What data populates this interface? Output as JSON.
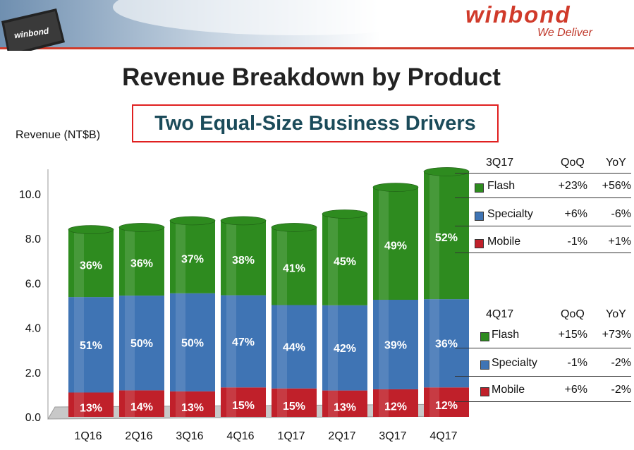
{
  "header": {
    "logo_text": "winbond",
    "tagline": "We Deliver",
    "chip_label": "winbond"
  },
  "title": "Revenue Breakdown by Product",
  "subtitle": "Two Equal-Size Business Drivers",
  "colors": {
    "flash": "#2e8b1f",
    "specialty": "#3f74b4",
    "mobile": "#c0202a",
    "accent_red": "#d03a2a"
  },
  "chart_data": {
    "type": "bar",
    "stacked": true,
    "ylabel": "Revenue (NT$B)",
    "ylim": [
      0,
      11
    ],
    "yticks": [
      "0.0",
      "2.0",
      "4.0",
      "6.0",
      "8.0",
      "10.0"
    ],
    "categories": [
      "1Q16",
      "2Q16",
      "3Q16",
      "4Q16",
      "1Q17",
      "2Q17",
      "3Q17",
      "4Q17"
    ],
    "totals": [
      8.4,
      8.5,
      8.8,
      8.8,
      8.5,
      9.1,
      10.3,
      11.0
    ],
    "series": [
      {
        "name": "Mobile",
        "share_labels": [
          "13%",
          "14%",
          "13%",
          "15%",
          "15%",
          "13%",
          "12%",
          "12%"
        ],
        "shares": [
          13,
          14,
          13,
          15,
          15,
          13,
          12,
          12
        ]
      },
      {
        "name": "Specialty",
        "share_labels": [
          "51%",
          "50%",
          "50%",
          "47%",
          "44%",
          "42%",
          "39%",
          "36%"
        ],
        "shares": [
          51,
          50,
          50,
          47,
          44,
          42,
          39,
          36
        ]
      },
      {
        "name": "Flash",
        "share_labels": [
          "36%",
          "36%",
          "37%",
          "38%",
          "41%",
          "45%",
          "49%",
          "52%"
        ],
        "shares": [
          36,
          36,
          37,
          38,
          41,
          45,
          49,
          52
        ]
      }
    ],
    "grid": false
  },
  "tables": [
    {
      "period": "3Q17",
      "col1": "QoQ",
      "col2": "YoY",
      "rows": [
        {
          "name": "Flash",
          "qoq": "+23%",
          "yoy": "+56%"
        },
        {
          "name": "Specialty",
          "qoq": "+6%",
          "yoy": "-6%"
        },
        {
          "name": "Mobile",
          "qoq": "-1%",
          "yoy": "+1%"
        }
      ]
    },
    {
      "period": "4Q17",
      "col1": "QoQ",
      "col2": "YoY",
      "rows": [
        {
          "name": "Flash",
          "qoq": "+15%",
          "yoy": "+73%"
        },
        {
          "name": "Specialty",
          "qoq": "-1%",
          "yoy": "-2%"
        },
        {
          "name": "Mobile",
          "qoq": "+6%",
          "yoy": "-2%"
        }
      ]
    }
  ]
}
